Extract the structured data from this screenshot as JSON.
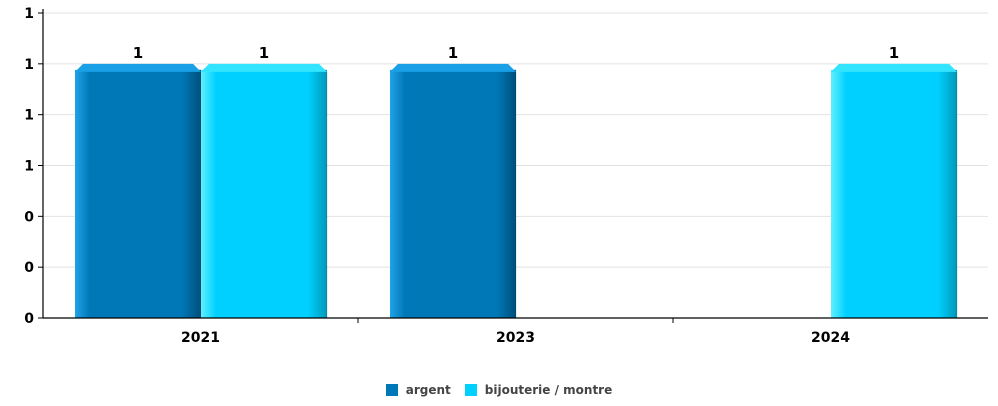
{
  "chart_data": {
    "type": "bar",
    "categories": [
      "2021",
      "2023",
      "2024"
    ],
    "series": [
      {
        "name": "argent",
        "values": [
          1,
          1,
          0
        ],
        "color": "#0077b6"
      },
      {
        "name": "bijouterie / montre",
        "values": [
          1,
          0,
          1
        ],
        "color": "#00d0ff"
      }
    ],
    "data_labels": [
      [
        "1",
        "1",
        ""
      ],
      [
        "1",
        "",
        "1"
      ]
    ],
    "y_tick_labels": [
      "0",
      "0",
      "0",
      "1",
      "1",
      "1",
      "1"
    ],
    "ylim": [
      0,
      1.2
    ],
    "grid": true,
    "legend_position": "bottom-center",
    "title": "",
    "xlabel": "",
    "ylabel": ""
  }
}
